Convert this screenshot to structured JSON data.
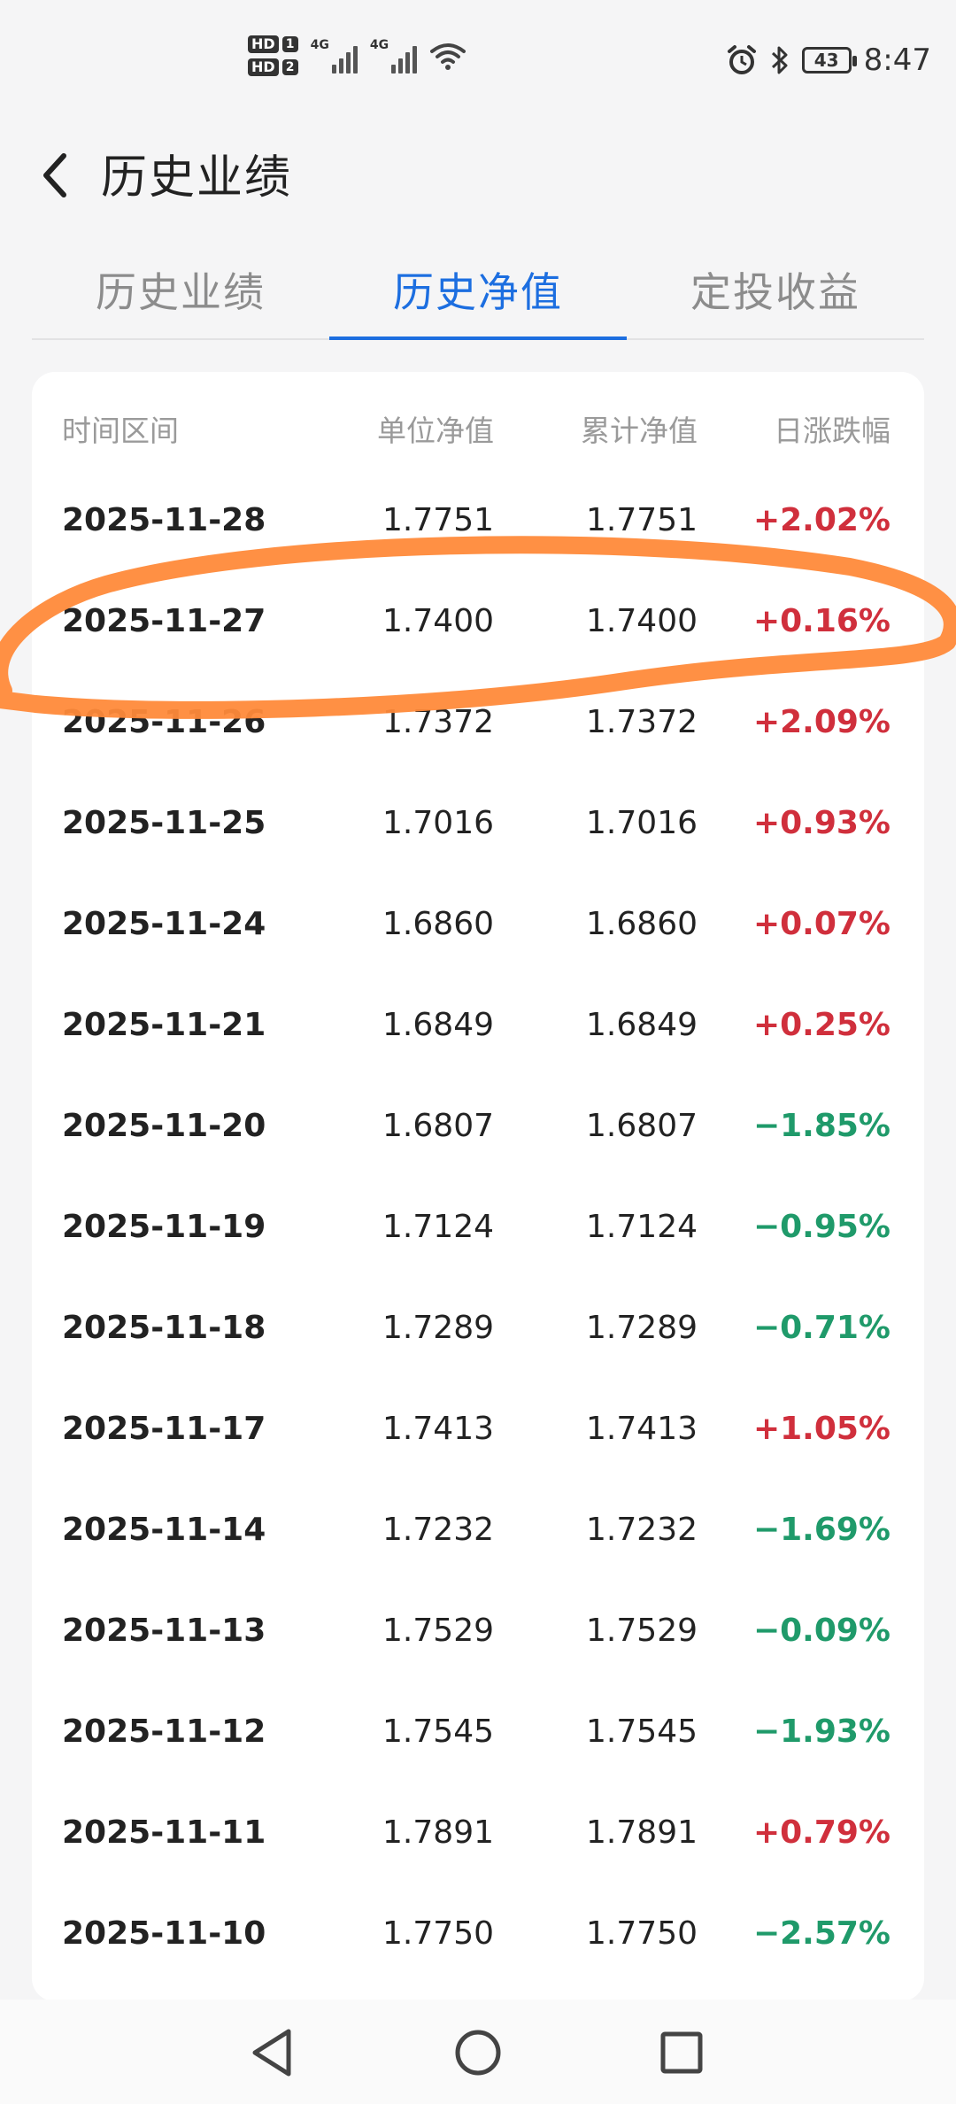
{
  "status_bar": {
    "sim1_label": "HD",
    "sim1_num": "1",
    "sim2_label": "HD",
    "sim2_num": "2",
    "net1": "4G",
    "net2": "4G",
    "battery": "43",
    "time": "8:47",
    "icons": [
      "alarm-icon",
      "bluetooth-icon",
      "wifi-icon",
      "battery-icon"
    ]
  },
  "header": {
    "title": "历史业绩"
  },
  "tabs": [
    {
      "label": "历史业绩",
      "active": false
    },
    {
      "label": "历史净值",
      "active": true
    },
    {
      "label": "定投收益",
      "active": false
    }
  ],
  "table": {
    "columns": [
      "时间区间",
      "单位净值",
      "累计净值",
      "日涨跌幅"
    ],
    "rows": [
      {
        "date": "2025-11-28",
        "unit": "1.7751",
        "acc": "1.7751",
        "change": "+2.02%"
      },
      {
        "date": "2025-11-27",
        "unit": "1.7400",
        "acc": "1.7400",
        "change": "+0.16%"
      },
      {
        "date": "2025-11-26",
        "unit": "1.7372",
        "acc": "1.7372",
        "change": "+2.09%"
      },
      {
        "date": "2025-11-25",
        "unit": "1.7016",
        "acc": "1.7016",
        "change": "+0.93%"
      },
      {
        "date": "2025-11-24",
        "unit": "1.6860",
        "acc": "1.6860",
        "change": "+0.07%"
      },
      {
        "date": "2025-11-21",
        "unit": "1.6849",
        "acc": "1.6849",
        "change": "+0.25%"
      },
      {
        "date": "2025-11-20",
        "unit": "1.6807",
        "acc": "1.6807",
        "change": "−1.85%"
      },
      {
        "date": "2025-11-19",
        "unit": "1.7124",
        "acc": "1.7124",
        "change": "−0.95%"
      },
      {
        "date": "2025-11-18",
        "unit": "1.7289",
        "acc": "1.7289",
        "change": "−0.71%"
      },
      {
        "date": "2025-11-17",
        "unit": "1.7413",
        "acc": "1.7413",
        "change": "+1.05%"
      },
      {
        "date": "2025-11-14",
        "unit": "1.7232",
        "acc": "1.7232",
        "change": "−1.69%"
      },
      {
        "date": "2025-11-13",
        "unit": "1.7529",
        "acc": "1.7529",
        "change": "−0.09%"
      },
      {
        "date": "2025-11-12",
        "unit": "1.7545",
        "acc": "1.7545",
        "change": "−1.93%"
      },
      {
        "date": "2025-11-11",
        "unit": "1.7891",
        "acc": "1.7891",
        "change": "+0.79%"
      },
      {
        "date": "2025-11-10",
        "unit": "1.7750",
        "acc": "1.7750",
        "change": "−2.57%"
      }
    ]
  },
  "colors": {
    "accent": "#1c6ee0",
    "up": "#d02f3c",
    "down": "#1f9a6a",
    "annotation": "#ff8a3a"
  },
  "nav_bar": {
    "icons": [
      "back-triangle-icon",
      "home-circle-icon",
      "recents-square-icon"
    ]
  }
}
